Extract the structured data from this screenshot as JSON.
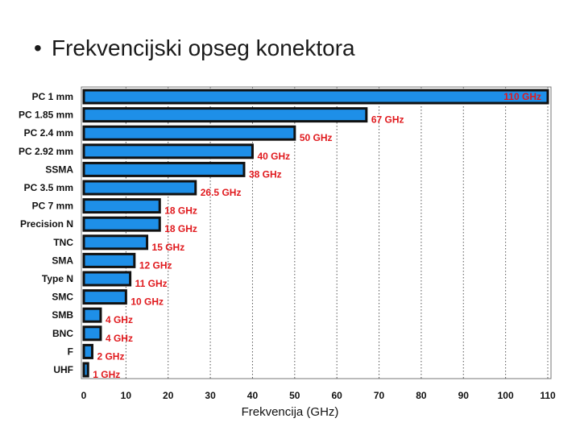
{
  "slide": {
    "bullet": "•",
    "title": "Frekvencijski opseg konektora"
  },
  "chart_data": {
    "type": "bar",
    "orientation": "horizontal",
    "title": "",
    "xlabel": "Frekvencija (GHz)",
    "ylabel": "",
    "xlim": [
      0,
      110
    ],
    "xticks": [
      0,
      10,
      20,
      30,
      40,
      50,
      60,
      70,
      80,
      90,
      100,
      110
    ],
    "grid": "vertical dotted lines",
    "categories": [
      "PC 1 mm",
      "PC 1.85 mm",
      "PC 2.4 mm",
      "PC 2.92 mm",
      "SSMA",
      "PC 3.5 mm",
      "PC 7 mm",
      "Precision N",
      "TNC",
      "SMA",
      "Type N",
      "SMC",
      "SMB",
      "BNC",
      "F",
      "UHF"
    ],
    "values": [
      110,
      67,
      50,
      40,
      38,
      26.5,
      18,
      18,
      15,
      12,
      11,
      10,
      4,
      4,
      2,
      1
    ],
    "data_labels": [
      "110 GHz",
      "67 GHz",
      "50 GHz",
      "40 GHz",
      "38 GHz",
      "26.5 GHz",
      "18 GHz",
      "18 GHz",
      "15 GHz",
      "12 GHz",
      "11 GHz",
      "10 GHz",
      "4 GHz",
      "4 GHz",
      "2 GHz",
      "1 GHz"
    ],
    "colors": {
      "bar": "#1e8fe8",
      "bar_border": "#111111",
      "label": "#e0191d",
      "grid": "#555555"
    }
  }
}
